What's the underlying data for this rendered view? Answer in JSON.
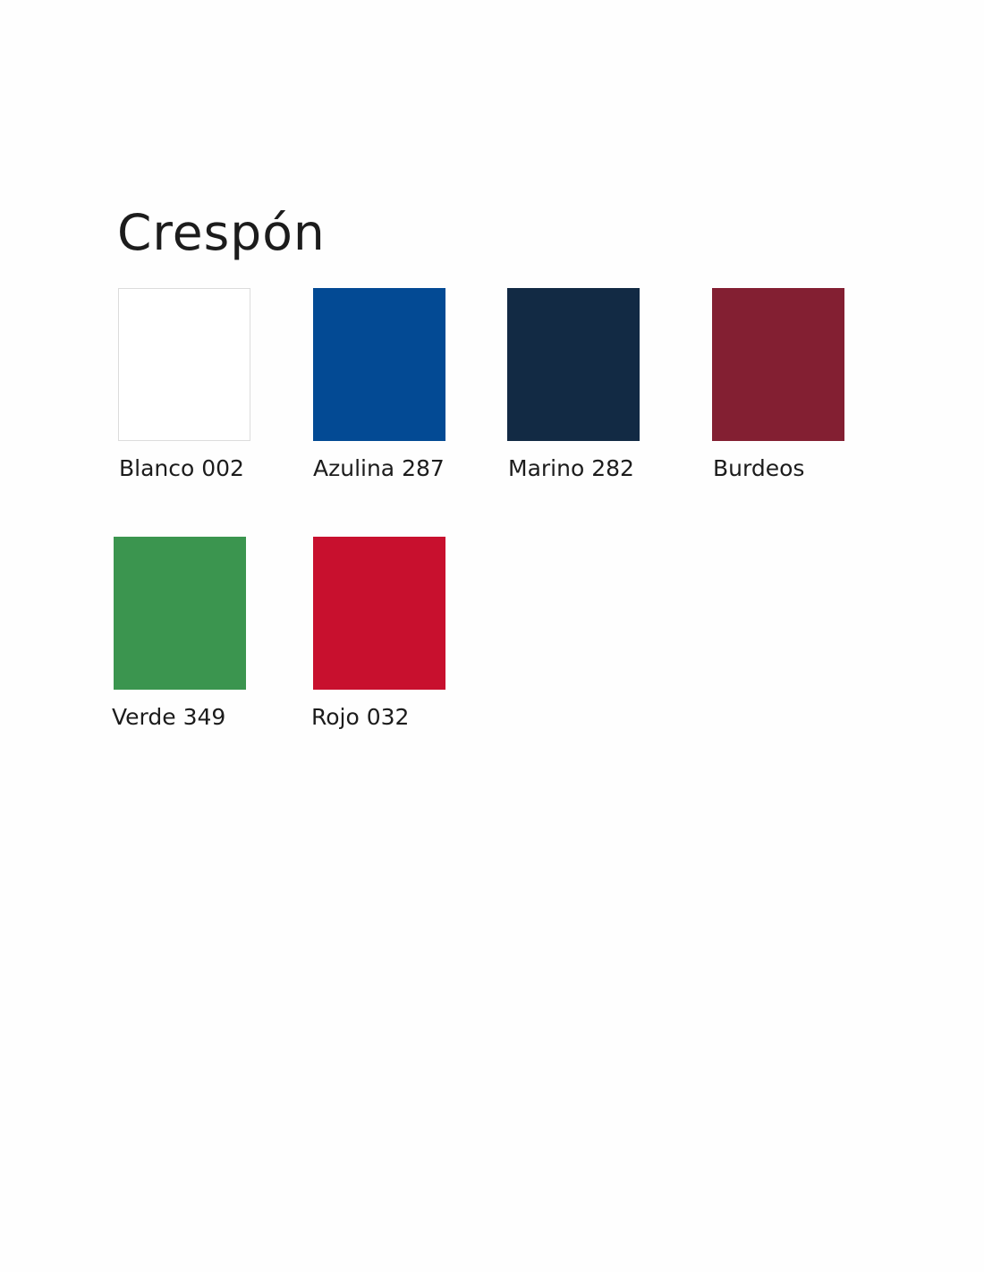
{
  "title": "Crespón",
  "swatches": [
    {
      "label": "Blanco 002",
      "color": "#ffffff"
    },
    {
      "label": "Azulina 287",
      "color": "#034a94"
    },
    {
      "label": "Marino 282",
      "color": "#122a44"
    },
    {
      "label": "Burdeos",
      "color": "#831f32"
    },
    {
      "label": "Verde 349",
      "color": "#3b954f"
    },
    {
      "label": "Rojo 032",
      "color": "#c8102e"
    }
  ]
}
